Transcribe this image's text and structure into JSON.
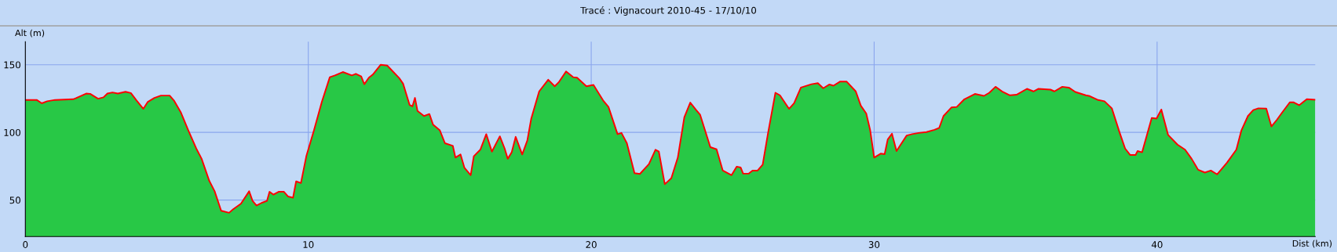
{
  "chart_data": {
    "type": "area",
    "title": "Tracé : Vignacourt 2010-45 - 17/10/10",
    "xlabel": "Dist (km)",
    "ylabel": "Alt (m)",
    "xlim": [
      0,
      45.59
    ],
    "ylim": [
      23,
      167
    ],
    "xticks": [
      0,
      10,
      20,
      30,
      40
    ],
    "yticks": [
      50,
      100,
      150
    ],
    "grid": true,
    "legend": false,
    "series": [
      {
        "color": "#28c846",
        "x": [
          0,
          0.4,
          0.58,
          0.77,
          1.05,
          1.69,
          1.79,
          2.15,
          2.29,
          2.57,
          2.76,
          2.9,
          3.08,
          3.27,
          3.54,
          3.73,
          3.93,
          4.17,
          4.33,
          4.56,
          4.79,
          5.1,
          5.25,
          5.49,
          5.76,
          6.04,
          6.23,
          6.5,
          6.69,
          6.92,
          7.2,
          7.34,
          7.62,
          7.91,
          8.03,
          8.17,
          8.35,
          8.54,
          8.63,
          8.77,
          8.95,
          9.14,
          9.28,
          9.46,
          9.57,
          9.74,
          9.93,
          10.2,
          10.48,
          10.76,
          10.94,
          11.22,
          11.54,
          11.68,
          11.87,
          11.98,
          12.14,
          12.28,
          12.56,
          12.79,
          13.21,
          13.35,
          13.58,
          13.68,
          13.77,
          13.86,
          14.09,
          14.28,
          14.41,
          14.65,
          14.83,
          15.11,
          15.2,
          15.38,
          15.52,
          15.74,
          15.85,
          16.08,
          16.29,
          16.49,
          16.77,
          16.94,
          17.05,
          17.19,
          17.33,
          17.56,
          17.74,
          17.88,
          18.16,
          18.48,
          18.71,
          18.85,
          19.11,
          19.36,
          19.5,
          19.83,
          20.08,
          20.42,
          20.61,
          20.93,
          21.07,
          21.26,
          21.53,
          21.72,
          22.04,
          22.27,
          22.39,
          22.6,
          22.83,
          23.06,
          23.29,
          23.5,
          23.71,
          23.85,
          24.21,
          24.43,
          24.65,
          24.96,
          25.14,
          25.28,
          25.37,
          25.56,
          25.7,
          25.88,
          26.06,
          26.25,
          26.51,
          26.67,
          26.99,
          27.17,
          27.41,
          27.78,
          28.01,
          28.2,
          28.42,
          28.56,
          28.79,
          29.03,
          29.35,
          29.53,
          29.72,
          29.86,
          30.0,
          30.23,
          30.37,
          30.48,
          30.63,
          30.79,
          30.97,
          31.15,
          31.34,
          31.57,
          31.85,
          32.13,
          32.3,
          32.45,
          32.73,
          32.92,
          33.19,
          33.56,
          33.88,
          34.07,
          34.29,
          34.52,
          34.8,
          35.03,
          35.4,
          35.63,
          35.81,
          36.23,
          36.37,
          36.65,
          36.88,
          37.11,
          37.48,
          37.62,
          37.89,
          38.14,
          38.4,
          38.68,
          38.87,
          39.05,
          39.24,
          39.31,
          39.47,
          39.81,
          39.98,
          40.15,
          40.39,
          40.72,
          40.99,
          41.22,
          41.45,
          41.69,
          41.9,
          42.12,
          42.47,
          42.8,
          42.98,
          43.21,
          43.4,
          43.58,
          43.86,
          44.04,
          44.23,
          44.41,
          44.69,
          44.83,
          45.02,
          45.29,
          45.59
        ],
        "values": [
          124,
          124,
          121.5,
          123,
          124,
          124.5,
          125.3,
          128.7,
          128.5,
          124.9,
          125.9,
          128.7,
          129.5,
          128.7,
          130,
          129.1,
          123.6,
          117.4,
          122.6,
          125.5,
          127.2,
          127.2,
          123.6,
          115,
          101.5,
          88.1,
          80.5,
          64.2,
          56.5,
          42.1,
          40.6,
          43.1,
          47.3,
          56.5,
          49.4,
          46,
          47.9,
          49.4,
          56.1,
          54,
          56.1,
          56.1,
          52.7,
          51.7,
          63.8,
          62.6,
          82.4,
          101.5,
          122.6,
          140.8,
          142.1,
          144.6,
          142.1,
          143.3,
          141.4,
          135.6,
          140.4,
          142.7,
          150,
          149.4,
          140.2,
          136,
          120.3,
          119.2,
          125.5,
          115.9,
          112.1,
          113.6,
          105.7,
          101.5,
          92,
          90,
          81.4,
          83.7,
          73.8,
          68.4,
          82.4,
          87.2,
          98.7,
          85.8,
          97.1,
          88.1,
          80.5,
          85.3,
          96.7,
          83.7,
          93.9,
          110.2,
          130.3,
          138.9,
          134.1,
          137,
          145,
          140.8,
          140.4,
          134.1,
          135.1,
          123.6,
          118.8,
          98.7,
          99.6,
          92,
          69.9,
          69.3,
          76.6,
          87.2,
          85.8,
          61.7,
          66.1,
          81.4,
          111.1,
          122,
          116.5,
          113,
          89.1,
          87.5,
          71.8,
          68.4,
          74.7,
          74.1,
          69.5,
          69.5,
          71.8,
          71.8,
          76.2,
          99.6,
          129.3,
          127.4,
          117.4,
          121.6,
          133.1,
          135.6,
          136.4,
          132.6,
          135.4,
          134.5,
          137.5,
          137.5,
          130.3,
          119.7,
          114,
          101.5,
          81.4,
          84.3,
          83.9,
          94.8,
          99,
          86.2,
          92,
          97.7,
          98.7,
          99.6,
          100.2,
          101.9,
          103.4,
          112.1,
          118.4,
          118.8,
          124.5,
          128.4,
          127,
          129.3,
          133.7,
          130.3,
          127.4,
          127.8,
          132.2,
          130.3,
          132.2,
          131.6,
          130.3,
          133.7,
          133.1,
          129.9,
          127.4,
          126.8,
          124.1,
          123,
          117.8,
          99.6,
          88.1,
          83.3,
          83.3,
          86.2,
          85.3,
          110.7,
          110.2,
          116.9,
          98.1,
          91,
          87.2,
          80.5,
          72.4,
          70.3,
          71.8,
          69,
          77.6,
          87.2,
          101.5,
          112.1,
          116.5,
          117.8,
          117.6,
          104.4,
          109.2,
          114.4,
          122.2,
          122.2,
          120.1,
          124.5,
          124.1
        ]
      },
      {
        "type": "line",
        "color": "#ff0000",
        "x": [
          0,
          0.4,
          0.58,
          0.77,
          1.05,
          1.69,
          1.79,
          2.15,
          2.29,
          2.57,
          2.76,
          2.9,
          3.08,
          3.27,
          3.54,
          3.73,
          3.93,
          4.17,
          4.33,
          4.56,
          4.79,
          5.1,
          5.25,
          5.49,
          5.76,
          6.04,
          6.23,
          6.5,
          6.69,
          6.92,
          7.2,
          7.34,
          7.62,
          7.91,
          8.03,
          8.17,
          8.35,
          8.54,
          8.63,
          8.77,
          8.95,
          9.14,
          9.28,
          9.46,
          9.57,
          9.74,
          9.93,
          10.2,
          10.48,
          10.76,
          10.94,
          11.22,
          11.54,
          11.68,
          11.87,
          11.98,
          12.14,
          12.28,
          12.56,
          12.79,
          13.21,
          13.35,
          13.58,
          13.68,
          13.77,
          13.86,
          14.09,
          14.28,
          14.41,
          14.65,
          14.83,
          15.11,
          15.2,
          15.38,
          15.52,
          15.74,
          15.85,
          16.08,
          16.29,
          16.49,
          16.77,
          16.94,
          17.05,
          17.19,
          17.33,
          17.56,
          17.74,
          17.88,
          18.16,
          18.48,
          18.71,
          18.85,
          19.11,
          19.36,
          19.5,
          19.83,
          20.08,
          20.42,
          20.61,
          20.93,
          21.07,
          21.26,
          21.53,
          21.72,
          22.04,
          22.27,
          22.39,
          22.6,
          22.83,
          23.06,
          23.29,
          23.5,
          23.71,
          23.85,
          24.21,
          24.43,
          24.65,
          24.96,
          25.14,
          25.28,
          25.37,
          25.56,
          25.7,
          25.88,
          26.06,
          26.25,
          26.51,
          26.67,
          26.99,
          27.17,
          27.41,
          27.78,
          28.01,
          28.2,
          28.42,
          28.56,
          28.79,
          29.03,
          29.35,
          29.53,
          29.72,
          29.86,
          30.0,
          30.23,
          30.37,
          30.48,
          30.63,
          30.79,
          30.97,
          31.15,
          31.34,
          31.57,
          31.85,
          32.13,
          32.3,
          32.45,
          32.73,
          32.92,
          33.19,
          33.56,
          33.88,
          34.07,
          34.29,
          34.52,
          34.8,
          35.03,
          35.4,
          35.63,
          35.81,
          36.23,
          36.37,
          36.65,
          36.88,
          37.11,
          37.48,
          37.62,
          37.89,
          38.14,
          38.4,
          38.68,
          38.87,
          39.05,
          39.24,
          39.31,
          39.47,
          39.81,
          39.98,
          40.15,
          40.39,
          40.72,
          40.99,
          41.22,
          41.45,
          41.69,
          41.9,
          42.12,
          42.47,
          42.8,
          42.98,
          43.21,
          43.4,
          43.58,
          43.86,
          44.04,
          44.23,
          44.41,
          44.69,
          44.83,
          45.02,
          45.29,
          45.59
        ],
        "values": [
          124,
          124,
          121.5,
          123,
          124,
          124.5,
          125.3,
          128.7,
          128.5,
          124.9,
          125.9,
          128.7,
          129.5,
          128.7,
          130,
          129.1,
          123.6,
          117.4,
          122.6,
          125.5,
          127.2,
          127.2,
          123.6,
          115,
          101.5,
          88.1,
          80.5,
          64.2,
          56.5,
          42.1,
          40.6,
          43.1,
          47.3,
          56.5,
          49.4,
          46,
          47.9,
          49.4,
          56.1,
          54,
          56.1,
          56.1,
          52.7,
          51.7,
          63.8,
          62.6,
          82.4,
          101.5,
          122.6,
          140.8,
          142.1,
          144.6,
          142.1,
          143.3,
          141.4,
          135.6,
          140.4,
          142.7,
          150,
          149.4,
          140.2,
          136,
          120.3,
          119.2,
          125.5,
          115.9,
          112.1,
          113.6,
          105.7,
          101.5,
          92,
          90,
          81.4,
          83.7,
          73.8,
          68.4,
          82.4,
          87.2,
          98.7,
          85.8,
          97.1,
          88.1,
          80.5,
          85.3,
          96.7,
          83.7,
          93.9,
          110.2,
          130.3,
          138.9,
          134.1,
          137,
          145,
          140.8,
          140.4,
          134.1,
          135.1,
          123.6,
          118.8,
          98.7,
          99.6,
          92,
          69.9,
          69.3,
          76.6,
          87.2,
          85.8,
          61.7,
          66.1,
          81.4,
          111.1,
          122,
          116.5,
          113,
          89.1,
          87.5,
          71.8,
          68.4,
          74.7,
          74.1,
          69.5,
          69.5,
          71.8,
          71.8,
          76.2,
          99.6,
          129.3,
          127.4,
          117.4,
          121.6,
          133.1,
          135.6,
          136.4,
          132.6,
          135.4,
          134.5,
          137.5,
          137.5,
          130.3,
          119.7,
          114,
          101.5,
          81.4,
          84.3,
          83.9,
          94.8,
          99,
          86.2,
          92,
          97.7,
          98.7,
          99.6,
          100.2,
          101.9,
          103.4,
          112.1,
          118.4,
          118.8,
          124.5,
          128.4,
          127,
          129.3,
          133.7,
          130.3,
          127.4,
          127.8,
          132.2,
          130.3,
          132.2,
          131.6,
          130.3,
          133.7,
          133.1,
          129.9,
          127.4,
          126.8,
          124.1,
          123,
          117.8,
          99.6,
          88.1,
          83.3,
          83.3,
          86.2,
          85.3,
          110.7,
          110.2,
          116.9,
          98.1,
          91,
          87.2,
          80.5,
          72.4,
          70.3,
          71.8,
          69,
          77.6,
          87.2,
          101.5,
          112.1,
          116.5,
          117.8,
          117.6,
          104.4,
          109.2,
          114.4,
          122.2,
          122.2,
          120.1,
          124.5,
          124.1
        ]
      }
    ]
  }
}
